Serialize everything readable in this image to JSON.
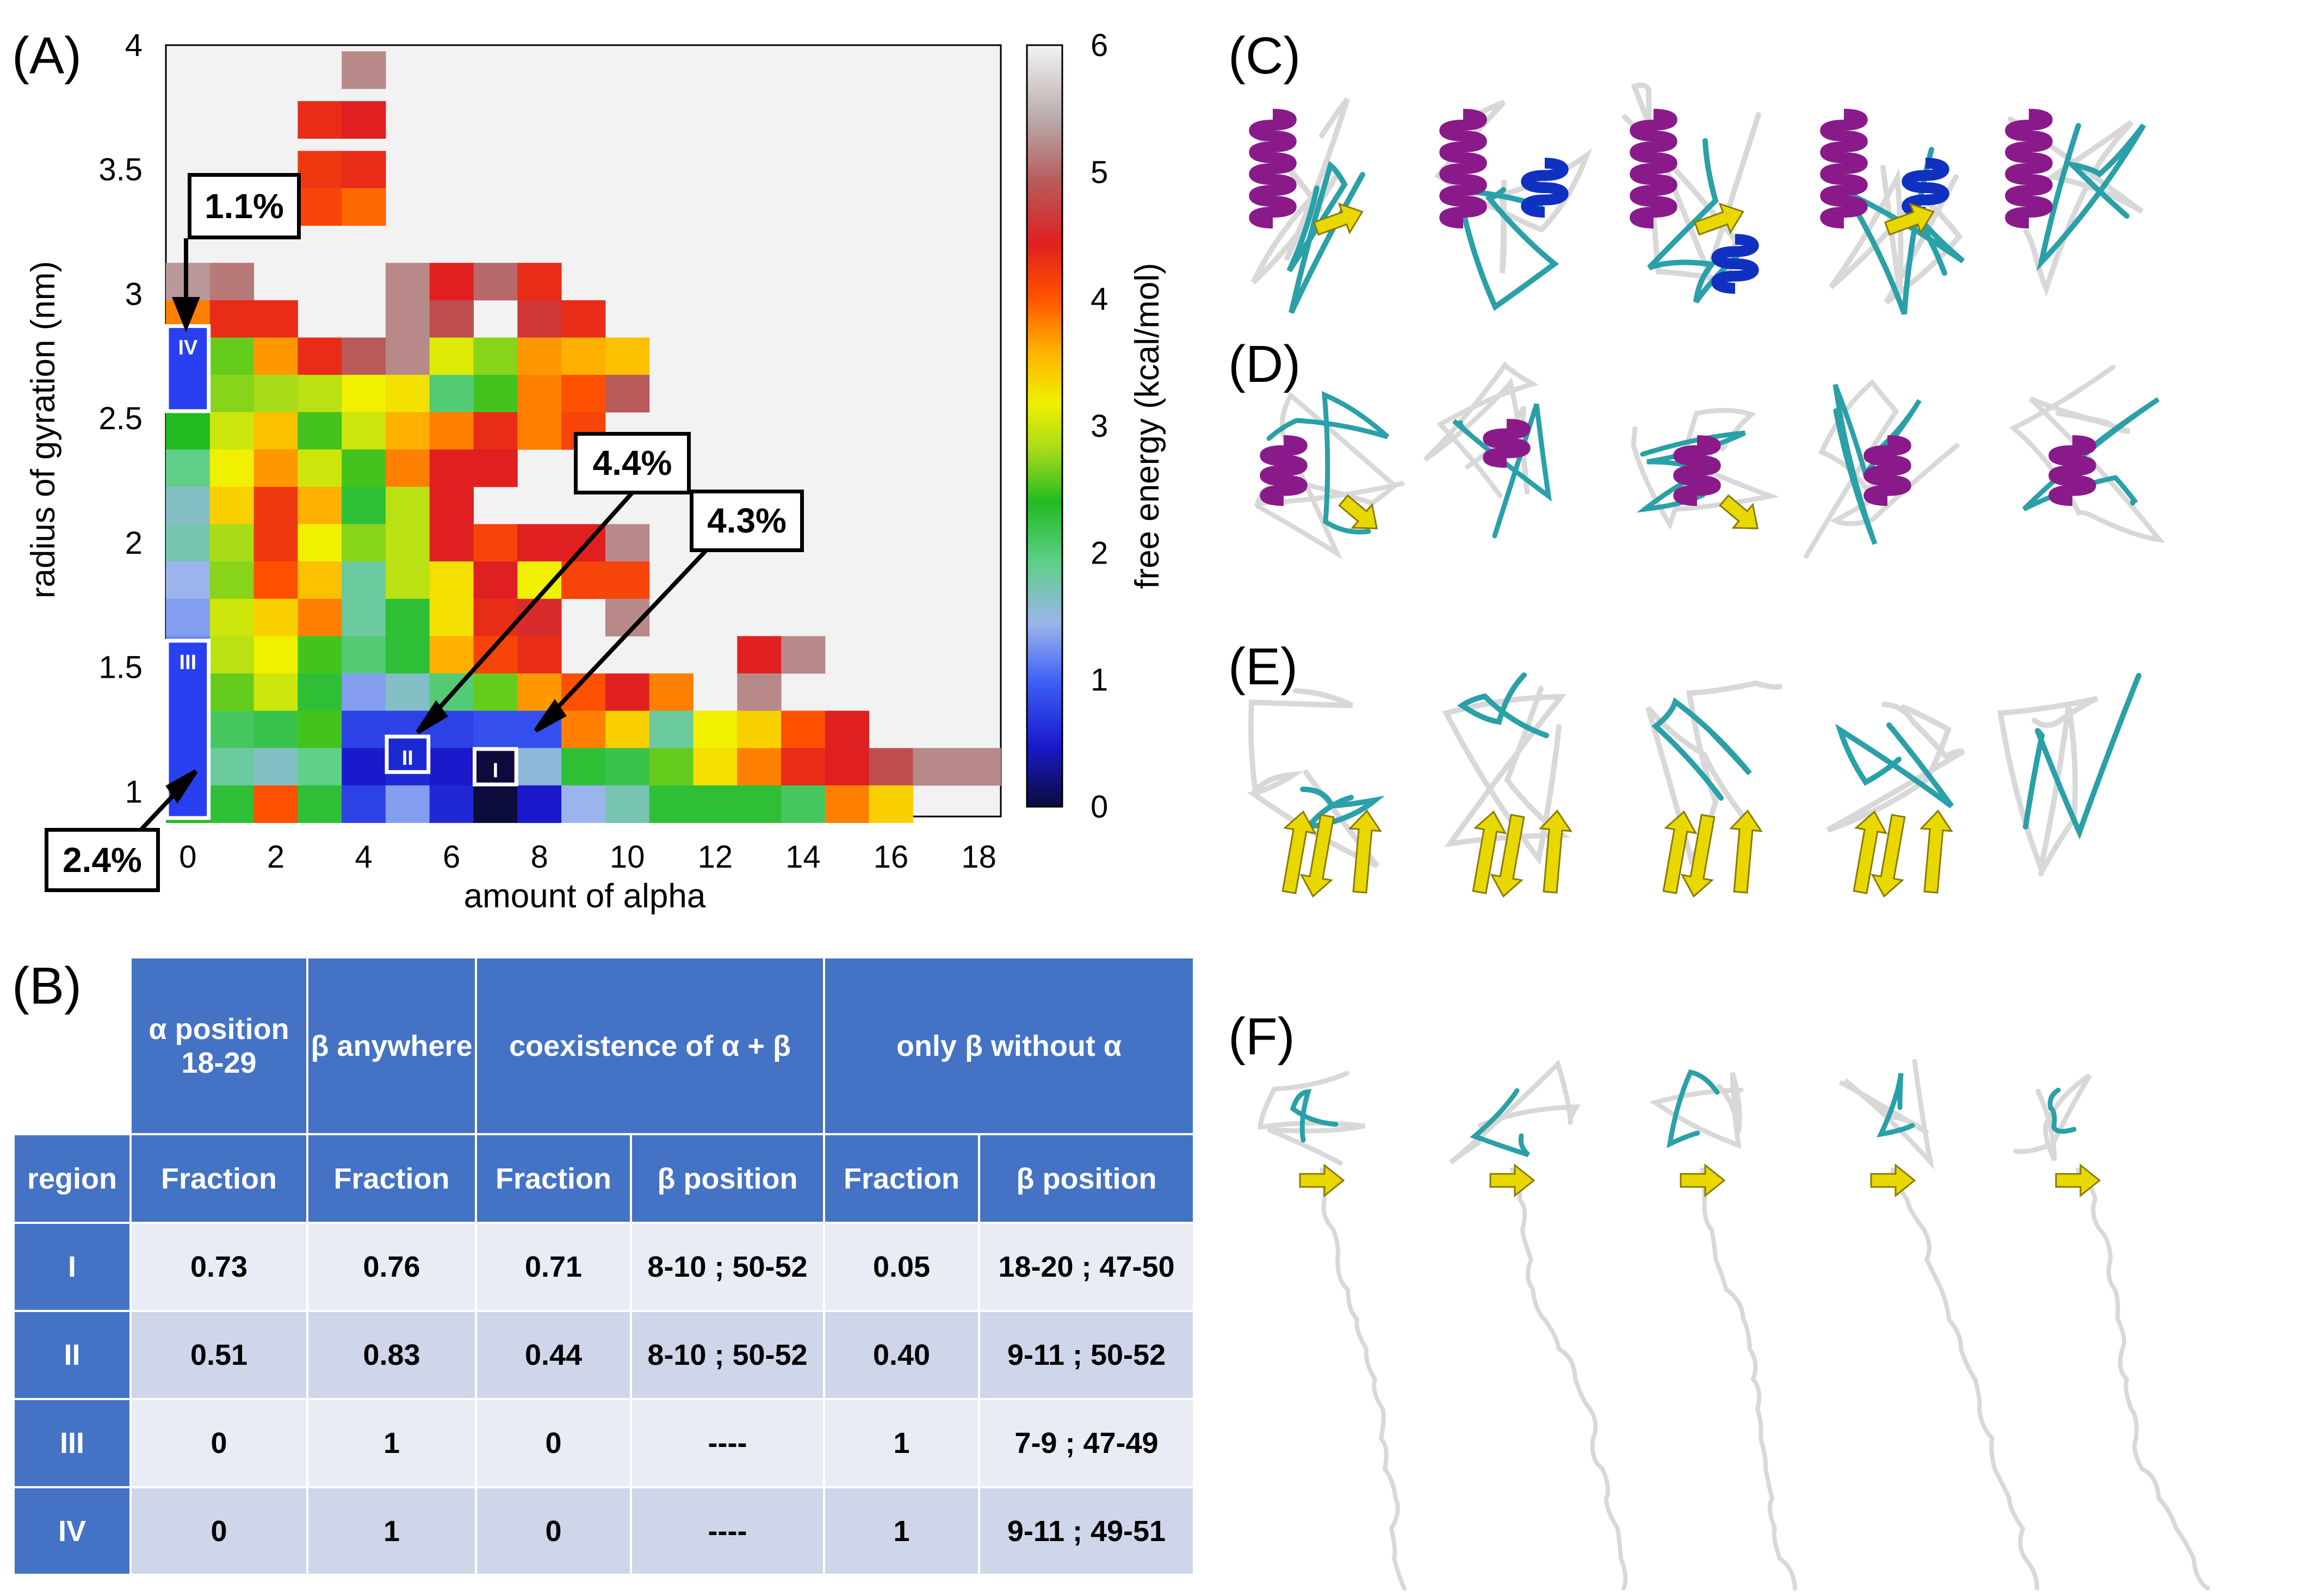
{
  "panels": {
    "A": "(A)",
    "B": "(B)",
    "C": "(C)",
    "D": "(D)",
    "E": "(E)",
    "F": "(F)"
  },
  "chart_data": {
    "type": "heatmap",
    "xlabel": "amount of alpha",
    "ylabel": "radius of gyration (nm)",
    "colorbar_label": "free energy (kcal/mol)",
    "xlim": [
      -0.5,
      18.5
    ],
    "ylim": [
      0.9,
      4.0
    ],
    "x_ticks": [
      "0",
      "2",
      "4",
      "6",
      "8",
      "10",
      "12",
      "14",
      "16",
      "18"
    ],
    "y_ticks": [
      "1",
      "1.5",
      "2",
      "2.5",
      "3",
      "3.5",
      "4"
    ],
    "colorbar_ticks": [
      "0",
      "1",
      "2",
      "3",
      "4",
      "5",
      "6"
    ],
    "cells": [
      {
        "x": 4,
        "y": 3.9,
        "v": 5.2
      },
      {
        "x": 3,
        "y": 3.7,
        "v": 4.3
      },
      {
        "x": 4,
        "y": 3.7,
        "v": 4.4
      },
      {
        "x": 3,
        "y": 3.5,
        "v": 4.2
      },
      {
        "x": 4,
        "y": 3.5,
        "v": 4.3
      },
      {
        "x": 3,
        "y": 3.35,
        "v": 4.1
      },
      {
        "x": 4,
        "y": 3.35,
        "v": 3.9
      },
      {
        "x": 0,
        "y": 3.05,
        "v": 5.3
      },
      {
        "x": 1,
        "y": 3.05,
        "v": 5.1
      },
      {
        "x": 5,
        "y": 3.05,
        "v": 5.2
      },
      {
        "x": 6,
        "y": 3.05,
        "v": 4.4
      },
      {
        "x": 7,
        "y": 3.05,
        "v": 5.0
      },
      {
        "x": 8,
        "y": 3.05,
        "v": 4.3
      },
      {
        "x": 0,
        "y": 2.9,
        "v": 3.8
      },
      {
        "x": 1,
        "y": 2.9,
        "v": 4.3
      },
      {
        "x": 2,
        "y": 2.9,
        "v": 4.3
      },
      {
        "x": 5,
        "y": 2.9,
        "v": 5.2
      },
      {
        "x": 6,
        "y": 2.9,
        "v": 4.8
      },
      {
        "x": 8,
        "y": 2.9,
        "v": 4.6
      },
      {
        "x": 9,
        "y": 2.9,
        "v": 4.3
      },
      {
        "x": 0,
        "y": 2.75,
        "v": 1.1
      },
      {
        "x": 1,
        "y": 2.75,
        "v": 2.6
      },
      {
        "x": 2,
        "y": 2.75,
        "v": 3.7
      },
      {
        "x": 3,
        "y": 2.75,
        "v": 4.3
      },
      {
        "x": 4,
        "y": 2.75,
        "v": 4.9
      },
      {
        "x": 5,
        "y": 2.75,
        "v": 5.2
      },
      {
        "x": 6,
        "y": 2.75,
        "v": 3.1
      },
      {
        "x": 7,
        "y": 2.75,
        "v": 2.7
      },
      {
        "x": 8,
        "y": 2.75,
        "v": 3.7
      },
      {
        "x": 9,
        "y": 2.75,
        "v": 3.6
      },
      {
        "x": 10,
        "y": 2.75,
        "v": 3.5
      },
      {
        "x": 0,
        "y": 2.6,
        "v": 1.1
      },
      {
        "x": 1,
        "y": 2.6,
        "v": 2.7
      },
      {
        "x": 2,
        "y": 2.6,
        "v": 2.8
      },
      {
        "x": 3,
        "y": 2.6,
        "v": 2.9
      },
      {
        "x": 4,
        "y": 2.6,
        "v": 3.2
      },
      {
        "x": 5,
        "y": 2.6,
        "v": 3.3
      },
      {
        "x": 6,
        "y": 2.6,
        "v": 2.0
      },
      {
        "x": 7,
        "y": 2.6,
        "v": 2.5
      },
      {
        "x": 8,
        "y": 2.6,
        "v": 3.8
      },
      {
        "x": 9,
        "y": 2.6,
        "v": 4.0
      },
      {
        "x": 10,
        "y": 2.6,
        "v": 4.9
      },
      {
        "x": 0,
        "y": 2.45,
        "v": 2.4
      },
      {
        "x": 1,
        "y": 2.45,
        "v": 3.0
      },
      {
        "x": 2,
        "y": 2.45,
        "v": 3.5
      },
      {
        "x": 3,
        "y": 2.45,
        "v": 2.5
      },
      {
        "x": 4,
        "y": 2.45,
        "v": 3.0
      },
      {
        "x": 5,
        "y": 2.45,
        "v": 3.6
      },
      {
        "x": 6,
        "y": 2.45,
        "v": 3.8
      },
      {
        "x": 7,
        "y": 2.45,
        "v": 4.3
      },
      {
        "x": 8,
        "y": 2.45,
        "v": 3.8
      },
      {
        "x": 9,
        "y": 2.45,
        "v": 4.1
      },
      {
        "x": 0,
        "y": 2.3,
        "v": 1.9
      },
      {
        "x": 1,
        "y": 2.3,
        "v": 3.2
      },
      {
        "x": 2,
        "y": 2.3,
        "v": 3.7
      },
      {
        "x": 3,
        "y": 2.3,
        "v": 3.0
      },
      {
        "x": 4,
        "y": 2.3,
        "v": 2.5
      },
      {
        "x": 5,
        "y": 2.3,
        "v": 3.8
      },
      {
        "x": 6,
        "y": 2.3,
        "v": 4.4
      },
      {
        "x": 7,
        "y": 2.3,
        "v": 4.4
      },
      {
        "x": 0,
        "y": 2.15,
        "v": 1.6
      },
      {
        "x": 1,
        "y": 2.15,
        "v": 3.4
      },
      {
        "x": 2,
        "y": 2.15,
        "v": 4.2
      },
      {
        "x": 3,
        "y": 2.15,
        "v": 3.6
      },
      {
        "x": 4,
        "y": 2.15,
        "v": 2.3
      },
      {
        "x": 5,
        "y": 2.15,
        "v": 2.9
      },
      {
        "x": 6,
        "y": 2.15,
        "v": 4.4
      },
      {
        "x": 0,
        "y": 2.0,
        "v": 1.7
      },
      {
        "x": 1,
        "y": 2.0,
        "v": 2.8
      },
      {
        "x": 2,
        "y": 2.0,
        "v": 4.2
      },
      {
        "x": 3,
        "y": 2.0,
        "v": 3.2
      },
      {
        "x": 4,
        "y": 2.0,
        "v": 2.7
      },
      {
        "x": 5,
        "y": 2.0,
        "v": 2.9
      },
      {
        "x": 6,
        "y": 2.0,
        "v": 4.4
      },
      {
        "x": 7,
        "y": 2.0,
        "v": 4.1
      },
      {
        "x": 8,
        "y": 2.0,
        "v": 4.4
      },
      {
        "x": 9,
        "y": 2.0,
        "v": 4.4
      },
      {
        "x": 10,
        "y": 2.0,
        "v": 5.2
      },
      {
        "x": 0,
        "y": 1.85,
        "v": 1.4
      },
      {
        "x": 1,
        "y": 1.85,
        "v": 2.7
      },
      {
        "x": 2,
        "y": 1.85,
        "v": 4.0
      },
      {
        "x": 3,
        "y": 1.85,
        "v": 3.5
      },
      {
        "x": 4,
        "y": 1.85,
        "v": 1.8
      },
      {
        "x": 5,
        "y": 1.85,
        "v": 2.9
      },
      {
        "x": 6,
        "y": 1.85,
        "v": 3.3
      },
      {
        "x": 7,
        "y": 1.85,
        "v": 4.4
      },
      {
        "x": 8,
        "y": 1.85,
        "v": 3.2
      },
      {
        "x": 9,
        "y": 1.85,
        "v": 4.1
      },
      {
        "x": 10,
        "y": 1.85,
        "v": 4.1
      },
      {
        "x": 0,
        "y": 1.7,
        "v": 1.3
      },
      {
        "x": 1,
        "y": 1.7,
        "v": 3.0
      },
      {
        "x": 2,
        "y": 1.7,
        "v": 3.4
      },
      {
        "x": 3,
        "y": 1.7,
        "v": 3.8
      },
      {
        "x": 4,
        "y": 1.7,
        "v": 1.8
      },
      {
        "x": 5,
        "y": 1.7,
        "v": 2.3
      },
      {
        "x": 6,
        "y": 1.7,
        "v": 3.3
      },
      {
        "x": 7,
        "y": 1.7,
        "v": 4.3
      },
      {
        "x": 8,
        "y": 1.7,
        "v": 4.5
      },
      {
        "x": 10,
        "y": 1.7,
        "v": 5.2
      },
      {
        "x": 0,
        "y": 1.55,
        "v": 1.2
      },
      {
        "x": 1,
        "y": 1.55,
        "v": 2.9
      },
      {
        "x": 2,
        "y": 1.55,
        "v": 3.2
      },
      {
        "x": 3,
        "y": 1.55,
        "v": 2.5
      },
      {
        "x": 4,
        "y": 1.55,
        "v": 2.0
      },
      {
        "x": 5,
        "y": 1.55,
        "v": 2.3
      },
      {
        "x": 6,
        "y": 1.55,
        "v": 3.6
      },
      {
        "x": 7,
        "y": 1.55,
        "v": 4.1
      },
      {
        "x": 8,
        "y": 1.55,
        "v": 4.3
      },
      {
        "x": 13,
        "y": 1.55,
        "v": 4.4
      },
      {
        "x": 14,
        "y": 1.55,
        "v": 5.2
      },
      {
        "x": 0,
        "y": 1.4,
        "v": 1.1
      },
      {
        "x": 1,
        "y": 1.4,
        "v": 2.6
      },
      {
        "x": 2,
        "y": 1.4,
        "v": 3.0
      },
      {
        "x": 3,
        "y": 1.4,
        "v": 2.3
      },
      {
        "x": 4,
        "y": 1.4,
        "v": 1.3
      },
      {
        "x": 5,
        "y": 1.4,
        "v": 1.6
      },
      {
        "x": 6,
        "y": 1.4,
        "v": 2.0
      },
      {
        "x": 7,
        "y": 1.4,
        "v": 2.6
      },
      {
        "x": 8,
        "y": 1.4,
        "v": 3.7
      },
      {
        "x": 9,
        "y": 1.4,
        "v": 4.0
      },
      {
        "x": 10,
        "y": 1.4,
        "v": 4.4
      },
      {
        "x": 11,
        "y": 1.4,
        "v": 3.8
      },
      {
        "x": 13,
        "y": 1.4,
        "v": 5.2
      },
      {
        "x": 0,
        "y": 1.25,
        "v": 1.0
      },
      {
        "x": 1,
        "y": 1.25,
        "v": 2.1
      },
      {
        "x": 2,
        "y": 1.25,
        "v": 2.2
      },
      {
        "x": 3,
        "y": 1.25,
        "v": 2.5
      },
      {
        "x": 4,
        "y": 1.25,
        "v": 0.8
      },
      {
        "x": 5,
        "y": 1.25,
        "v": 0.8
      },
      {
        "x": 6,
        "y": 1.25,
        "v": 0.8
      },
      {
        "x": 7,
        "y": 1.25,
        "v": 0.9
      },
      {
        "x": 8,
        "y": 1.25,
        "v": 0.9
      },
      {
        "x": 9,
        "y": 1.25,
        "v": 3.8
      },
      {
        "x": 10,
        "y": 1.25,
        "v": 3.4
      },
      {
        "x": 11,
        "y": 1.25,
        "v": 1.8
      },
      {
        "x": 12,
        "y": 1.25,
        "v": 3.2
      },
      {
        "x": 13,
        "y": 1.25,
        "v": 3.4
      },
      {
        "x": 14,
        "y": 1.25,
        "v": 4.0
      },
      {
        "x": 15,
        "y": 1.25,
        "v": 4.4
      },
      {
        "x": 0,
        "y": 1.1,
        "v": 0.8
      },
      {
        "x": 1,
        "y": 1.1,
        "v": 1.8
      },
      {
        "x": 2,
        "y": 1.1,
        "v": 1.6
      },
      {
        "x": 3,
        "y": 1.1,
        "v": 1.9
      },
      {
        "x": 4,
        "y": 1.1,
        "v": 0.5
      },
      {
        "x": 5,
        "y": 1.1,
        "v": 0.6
      },
      {
        "x": 6,
        "y": 1.1,
        "v": 0.5
      },
      {
        "x": 7,
        "y": 1.1,
        "v": 0.2
      },
      {
        "x": 8,
        "y": 1.1,
        "v": 1.5
      },
      {
        "x": 9,
        "y": 1.1,
        "v": 2.3
      },
      {
        "x": 10,
        "y": 1.1,
        "v": 2.2
      },
      {
        "x": 11,
        "y": 1.1,
        "v": 2.6
      },
      {
        "x": 12,
        "y": 1.1,
        "v": 3.3
      },
      {
        "x": 13,
        "y": 1.1,
        "v": 3.8
      },
      {
        "x": 14,
        "y": 1.1,
        "v": 4.3
      },
      {
        "x": 15,
        "y": 1.1,
        "v": 4.4
      },
      {
        "x": 16,
        "y": 1.1,
        "v": 4.8
      },
      {
        "x": 17,
        "y": 1.1,
        "v": 5.2
      },
      {
        "x": 18,
        "y": 1.1,
        "v": 5.2
      },
      {
        "x": 0,
        "y": 0.95,
        "v": 2.4
      },
      {
        "x": 1,
        "y": 0.95,
        "v": 2.3
      },
      {
        "x": 2,
        "y": 0.95,
        "v": 4.0
      },
      {
        "x": 3,
        "y": 0.95,
        "v": 2.3
      },
      {
        "x": 4,
        "y": 0.95,
        "v": 0.8
      },
      {
        "x": 5,
        "y": 0.95,
        "v": 1.3
      },
      {
        "x": 6,
        "y": 0.95,
        "v": 0.6
      },
      {
        "x": 7,
        "y": 0.95,
        "v": 0.0
      },
      {
        "x": 8,
        "y": 0.95,
        "v": 0.5
      },
      {
        "x": 9,
        "y": 0.95,
        "v": 1.4
      },
      {
        "x": 10,
        "y": 0.95,
        "v": 1.7
      },
      {
        "x": 11,
        "y": 0.95,
        "v": 2.3
      },
      {
        "x": 12,
        "y": 0.95,
        "v": 2.3
      },
      {
        "x": 13,
        "y": 0.95,
        "v": 2.3
      },
      {
        "x": 14,
        "y": 0.95,
        "v": 2.1
      },
      {
        "x": 15,
        "y": 0.95,
        "v": 3.8
      },
      {
        "x": 16,
        "y": 0.95,
        "v": 3.4
      }
    ],
    "regions": [
      {
        "label": "I",
        "x": 7,
        "y": 1.1
      },
      {
        "label": "II",
        "x": 5,
        "y": 1.15
      },
      {
        "label": "III",
        "x": 0,
        "y": 1.25
      },
      {
        "label": "IV",
        "x": 0,
        "y": 2.7
      }
    ],
    "annotations": [
      "1.1%",
      "4.4%",
      "4.3%",
      "2.4%"
    ]
  },
  "table": {
    "group_headers": [
      "α position 18-29",
      "β anywhere",
      "coexistence of α + β",
      "only β without α"
    ],
    "sub_headers": [
      "region",
      "Fraction",
      "Fraction",
      "Fraction",
      "β position",
      "Fraction",
      "β position"
    ],
    "rows": [
      [
        "I",
        "0.73",
        "0.76",
        "0.71",
        "8-10 ; 50-52",
        "0.05",
        "18-20 ; 47-50"
      ],
      [
        "II",
        "0.51",
        "0.83",
        "0.44",
        "8-10 ; 50-52",
        "0.40",
        "9-11 ; 50-52"
      ],
      [
        "III",
        "0",
        "1",
        "0",
        "----",
        "1",
        "7-9 ; 47-49"
      ],
      [
        "IV",
        "0",
        "1",
        "0",
        "----",
        "1",
        "9-11 ; 49-51"
      ]
    ]
  },
  "colors": {
    "helix": "#8a1a8a",
    "three10": "#1030c0",
    "strand": "#e8d800",
    "turn": "#2aa0a8",
    "coil": "#d8d8d8",
    "header": "#4472c4"
  }
}
